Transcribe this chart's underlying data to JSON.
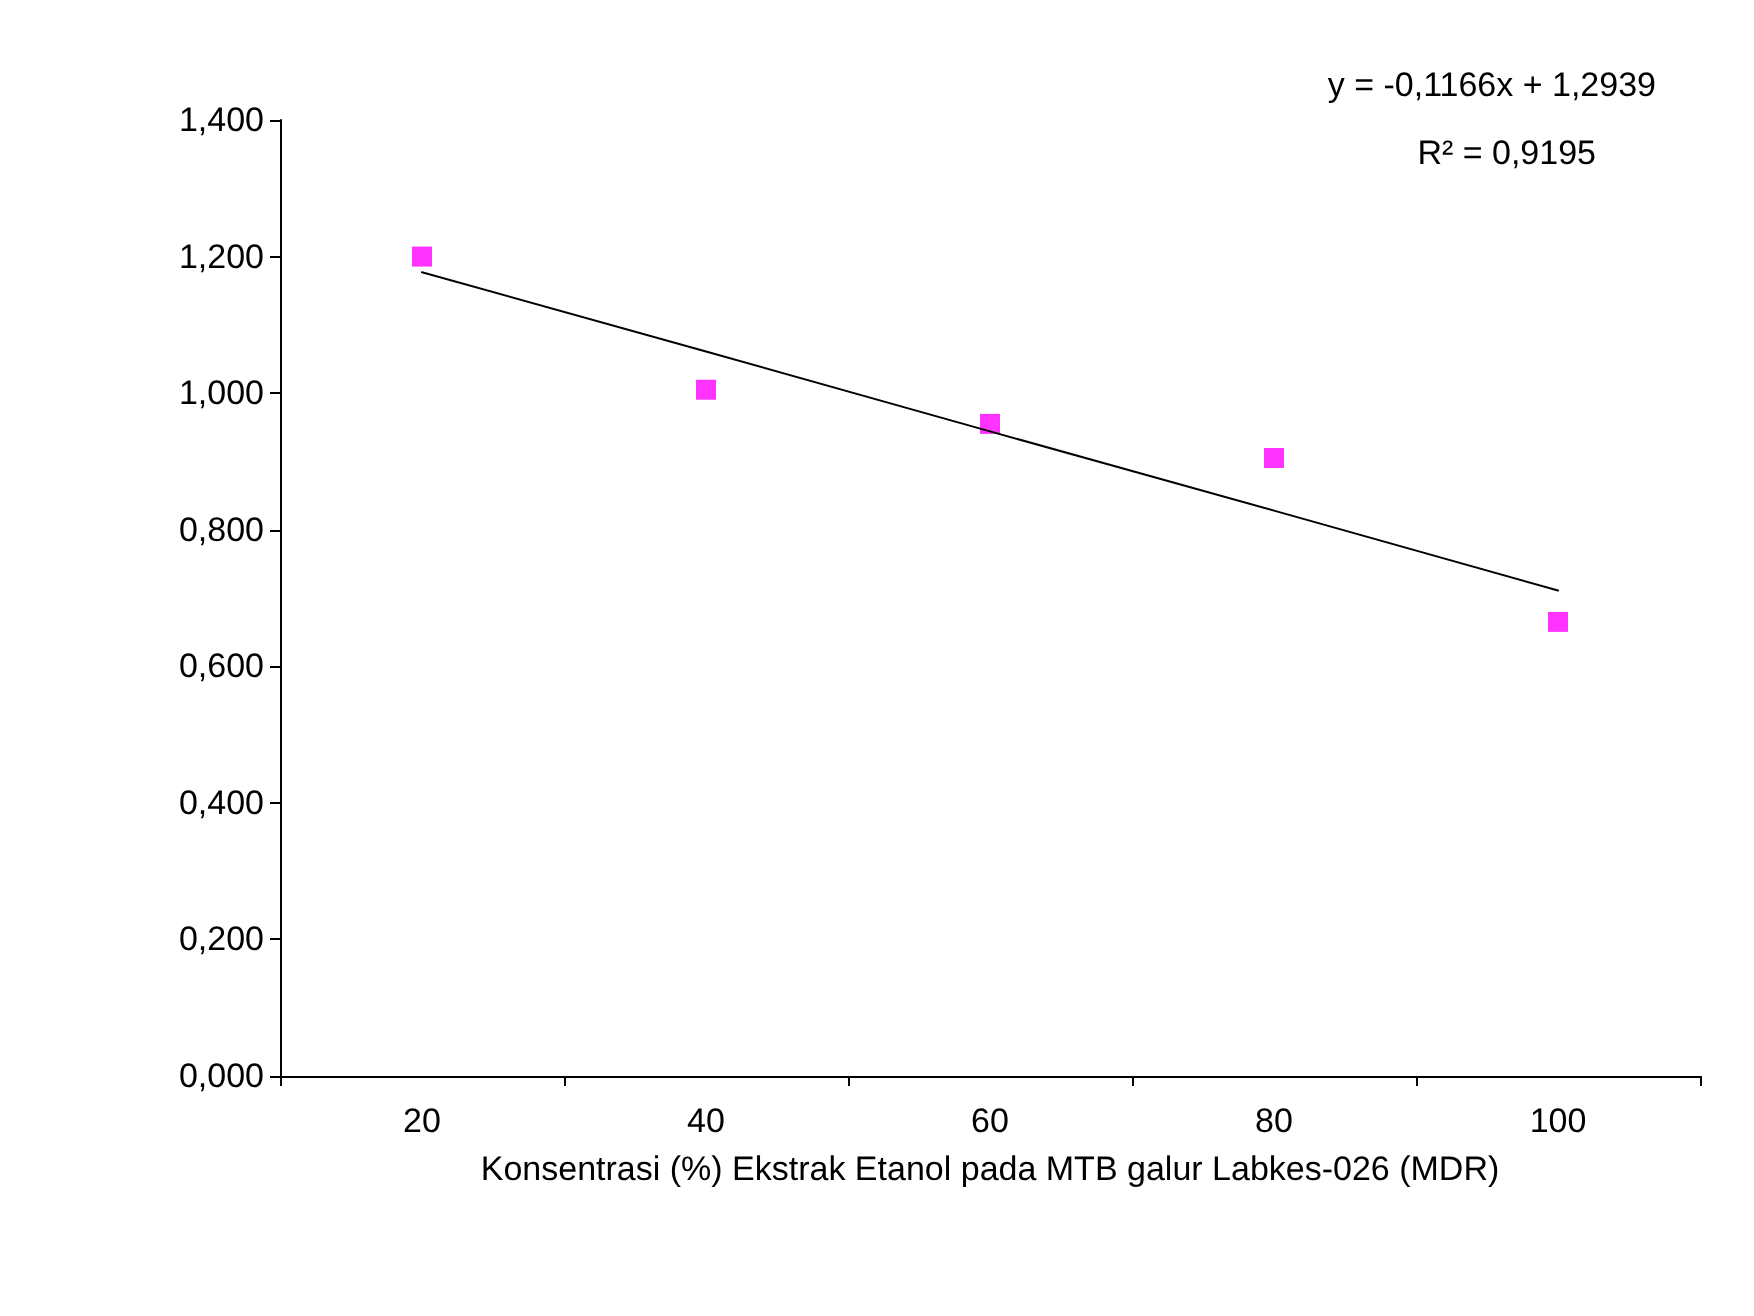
{
  "chart_data": {
    "type": "scatter",
    "xlabel": "Konsentrasi (%) Ekstrak Etanol pada MTB galur Labkes-026 (MDR)",
    "categories": [
      "20",
      "40",
      "60",
      "80",
      "100"
    ],
    "series": [
      {
        "color": "#ff00ff",
        "marker": "square",
        "values": [
          1.2,
          1.005,
          0.955,
          0.905,
          0.665
        ]
      },
      {
        "type": "line",
        "color": "#000000",
        "marker": "none",
        "line_style": "solid",
        "values": [
          1.177,
          1.061,
          0.944,
          0.828,
          0.711
        ]
      }
    ],
    "ylim": [
      0,
      1.4
    ],
    "yticks": [
      {
        "value": 0,
        "label": "0,000"
      },
      {
        "value": 0.2,
        "label": "0,200"
      },
      {
        "value": 0.4,
        "label": "0,400"
      },
      {
        "value": 0.6,
        "label": "0,600"
      },
      {
        "value": 0.8,
        "label": "0,800"
      },
      {
        "value": 1.0,
        "label": "1,000"
      },
      {
        "value": 1.2,
        "label": "1,200"
      },
      {
        "value": 1.4,
        "label": "1,400"
      }
    ],
    "grid": false,
    "annotations": [
      "y = -0,1166x + 1,2939",
      "R² = 0,9195"
    ]
  }
}
